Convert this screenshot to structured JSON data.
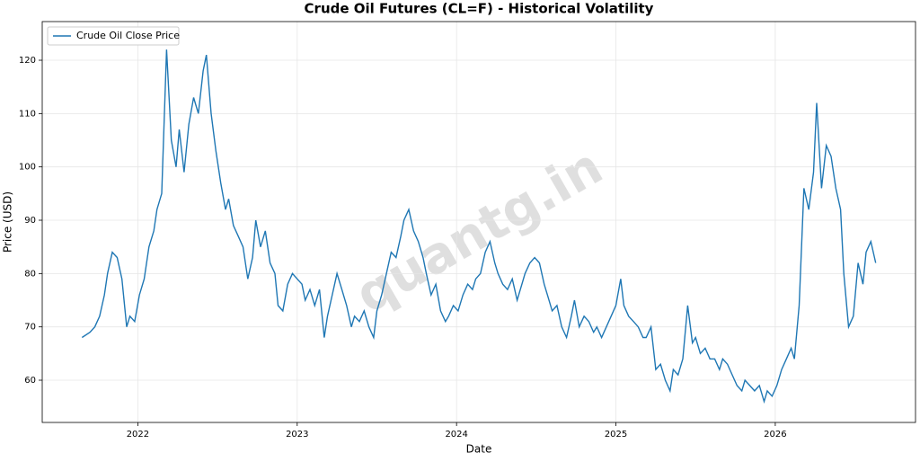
{
  "chart_data": {
    "type": "line",
    "title": "Crude Oil Futures (CL=F) - Historical Volatility",
    "xlabel": "Date",
    "ylabel": "Price (USD)",
    "watermark": "quantg.in",
    "legend": "upper left",
    "grid": true,
    "xlim": [
      2021.4,
      2026.88
    ],
    "xticks": [
      2022,
      2023,
      2024,
      2025,
      2026
    ],
    "ylim": [
      52.08,
      127.25
    ],
    "yticks": [
      60,
      70,
      80,
      90,
      100,
      110,
      120
    ],
    "x": [
      2021.65,
      2021.7,
      2021.73,
      2021.76,
      2021.79,
      2021.81,
      2021.84,
      2021.87,
      2021.9,
      2021.93,
      2021.95,
      2021.98,
      2022.01,
      2022.04,
      2022.07,
      2022.1,
      2022.12,
      2022.15,
      2022.18,
      2022.21,
      2022.24,
      2022.26,
      2022.29,
      2022.32,
      2022.35,
      2022.38,
      2022.41,
      2022.43,
      2022.46,
      2022.49,
      2022.52,
      2022.55,
      2022.57,
      2022.6,
      2022.63,
      2022.66,
      2022.69,
      2022.72,
      2022.74,
      2022.77,
      2022.8,
      2022.83,
      2022.86,
      2022.88,
      2022.91,
      2022.94,
      2022.97,
      2023.0,
      2023.03,
      2023.05,
      2023.08,
      2023.11,
      2023.14,
      2023.17,
      2023.19,
      2023.22,
      2023.25,
      2023.28,
      2023.31,
      2023.34,
      2023.36,
      2023.39,
      2023.42,
      2023.45,
      2023.48,
      2023.5,
      2023.53,
      2023.56,
      2023.59,
      2023.62,
      2023.65,
      2023.67,
      2023.7,
      2023.73,
      2023.76,
      2023.79,
      2023.81,
      2023.84,
      2023.87,
      2023.9,
      2023.93,
      2023.95,
      2023.98,
      2024.01,
      2024.04,
      2024.07,
      2024.1,
      2024.12,
      2024.15,
      2024.18,
      2024.21,
      2024.24,
      2024.26,
      2024.29,
      2024.32,
      2024.35,
      2024.38,
      2024.41,
      2024.43,
      2024.46,
      2024.49,
      2024.52,
      2024.55,
      2024.57,
      2024.6,
      2024.63,
      2024.66,
      2024.69,
      2024.72,
      2024.74,
      2024.77,
      2024.8,
      2024.83,
      2024.86,
      2024.88,
      2024.91,
      2024.94,
      2024.97,
      2025.0,
      2025.03,
      2025.05,
      2025.08,
      2025.11,
      2025.14,
      2025.17,
      2025.19,
      2025.22,
      2025.25,
      2025.28,
      2025.31,
      2025.34,
      2025.36,
      2025.39,
      2025.42,
      2025.45,
      2025.48,
      2025.5,
      2025.53,
      2025.56,
      2025.59,
      2025.62,
      2025.65,
      2025.67,
      2025.7,
      2025.73,
      2025.76,
      2025.79,
      2025.81,
      2025.84,
      2025.87,
      2025.9,
      2025.93,
      2025.95,
      2025.98,
      2026.01,
      2026.04,
      2026.07,
      2026.1,
      2026.12,
      2026.15,
      2026.18,
      2026.21,
      2026.24,
      2026.26,
      2026.29,
      2026.32,
      2026.35,
      2026.38,
      2026.41,
      2026.43,
      2026.46,
      2026.49,
      2026.52,
      2026.55,
      2026.57,
      2026.6,
      2026.63
    ],
    "series": [
      {
        "name": "Crude Oil Close Price",
        "color": "#1f77b4",
        "values": [
          68,
          69,
          70,
          72,
          76,
          80,
          84,
          83,
          79,
          70,
          72,
          71,
          76,
          79,
          85,
          88,
          92,
          95,
          122,
          105,
          100,
          107,
          99,
          108,
          113,
          110,
          118,
          121,
          110,
          103,
          97,
          92,
          94,
          89,
          87,
          85,
          79,
          83,
          90,
          85,
          88,
          82,
          80,
          74,
          73,
          78,
          80,
          79,
          78,
          75,
          77,
          74,
          77,
          68,
          72,
          76,
          80,
          77,
          74,
          70,
          72,
          71,
          73,
          70,
          68,
          73,
          76,
          80,
          84,
          83,
          87,
          90,
          92,
          88,
          86,
          83,
          80,
          76,
          78,
          73,
          71,
          72,
          74,
          73,
          76,
          78,
          77,
          79,
          80,
          84,
          86,
          82,
          80,
          78,
          77,
          79,
          75,
          78,
          80,
          82,
          83,
          82,
          78,
          76,
          73,
          74,
          70,
          68,
          72,
          75,
          70,
          72,
          71,
          69,
          70,
          68,
          70,
          72,
          74,
          79,
          74,
          72,
          71,
          70,
          68,
          68,
          70,
          62,
          63,
          60,
          58,
          62,
          61,
          64,
          74,
          67,
          68,
          65,
          66,
          64,
          64,
          62,
          64,
          63,
          61,
          59,
          58,
          60,
          59,
          58,
          59,
          56,
          58,
          57,
          59,
          62,
          64,
          66,
          64,
          74,
          96,
          92,
          99,
          112,
          96,
          104,
          102,
          96,
          92,
          80,
          70,
          72,
          82,
          78,
          84,
          86,
          82
        ]
      }
    ]
  }
}
